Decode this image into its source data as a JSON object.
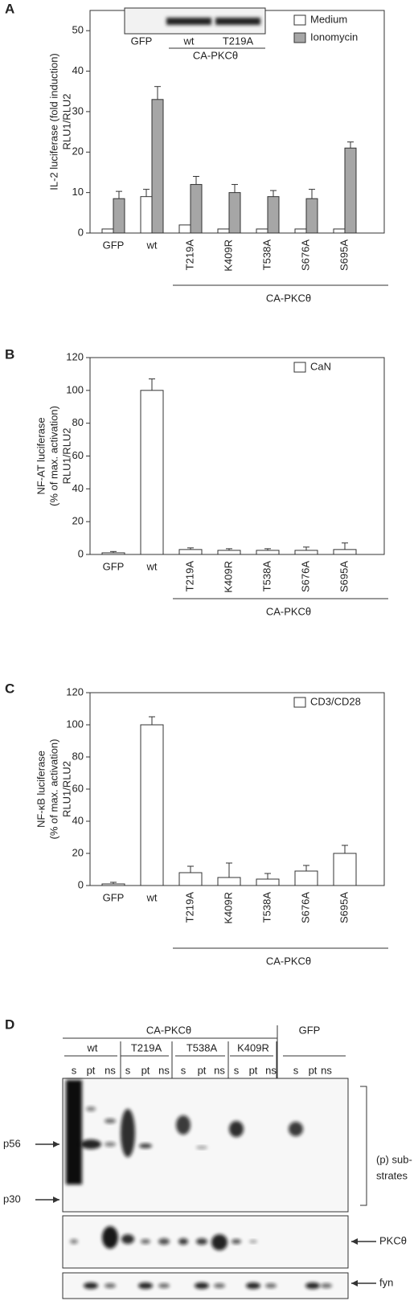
{
  "chart_data": [
    {
      "type": "bar",
      "panel": "A",
      "ylabel": [
        "IL-2 luciferase (fold induction)",
        "RLU1/RLU2"
      ],
      "categories": [
        "GFP",
        "wt",
        "T219A",
        "K409R",
        "T538A",
        "S676A",
        "S695A"
      ],
      "group_label": "CA-PKCθ",
      "series": [
        {
          "name": "Medium",
          "color": "#ffffff",
          "values": [
            1,
            9,
            2,
            1,
            1,
            1,
            1
          ],
          "errors": [
            0,
            1.8,
            0,
            0,
            0,
            0,
            0
          ]
        },
        {
          "name": "Ionomycin",
          "color": "#a6a6a6",
          "values": [
            8.5,
            33,
            12,
            10,
            9,
            8.5,
            21
          ],
          "errors": [
            1.8,
            3.2,
            2,
            2,
            1.5,
            2.3,
            1.5
          ]
        }
      ],
      "ylim": [
        0,
        55
      ],
      "yticks": [
        0,
        10,
        20,
        30,
        40,
        50
      ],
      "legend": "upper right",
      "inset": {
        "lanes": [
          "GFP",
          "wt",
          "T219A"
        ],
        "group_label": "CA-PKCθ"
      }
    },
    {
      "type": "bar",
      "panel": "B",
      "ylabel": [
        "NF-AT luciferase",
        "(% of max. activation)",
        "RLU1/RLU2"
      ],
      "categories": [
        "GFP",
        "wt",
        "T219A",
        "K409R",
        "T538A",
        "S676A",
        "S695A"
      ],
      "group_label": "CA-PKCθ",
      "series": [
        {
          "name": "CaN",
          "color": "#ffffff",
          "values": [
            1,
            100,
            3,
            2.5,
            2.5,
            2.5,
            3
          ],
          "errors": [
            0.8,
            7,
            1,
            1,
            1,
            2,
            4
          ]
        }
      ],
      "ylim": [
        0,
        120
      ],
      "yticks": [
        0,
        20,
        40,
        60,
        80,
        100,
        120
      ],
      "legend": "upper right"
    },
    {
      "type": "bar",
      "panel": "C",
      "ylabel": [
        "NF-κB luciferase",
        "(% of max. activation)",
        "RLU1/RLU2"
      ],
      "categories": [
        "GFP",
        "wt",
        "T219A",
        "K409R",
        "T538A",
        "S676A",
        "S695A"
      ],
      "group_label": "CA-PKCθ",
      "series": [
        {
          "name": "CD3/CD28",
          "color": "#ffffff",
          "values": [
            1,
            100,
            8,
            5,
            4,
            9,
            20
          ],
          "errors": [
            1,
            5,
            4,
            9,
            3.5,
            3.5,
            5
          ]
        }
      ],
      "ylim": [
        0,
        120
      ],
      "yticks": [
        0,
        20,
        40,
        60,
        80,
        100,
        120
      ],
      "legend": "upper right"
    }
  ],
  "blot": {
    "panel": "D",
    "title": "CA-PKCθ",
    "control": "GFP",
    "groups": [
      "wt",
      "T219A",
      "T538A",
      "K409R"
    ],
    "lanes": [
      "s",
      "pt",
      "ns"
    ],
    "markers": [
      "p56",
      "p30"
    ],
    "bracket_label": [
      "(p) sub-",
      "strates"
    ],
    "bands": [
      "PKCθ",
      "fyn"
    ]
  }
}
